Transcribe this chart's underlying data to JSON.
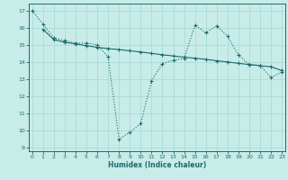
{
  "line1_x": [
    0,
    1,
    2,
    3,
    4,
    5,
    6,
    7,
    8,
    9,
    10,
    11,
    12,
    13,
    14,
    15,
    16,
    17,
    18,
    19,
    20,
    21,
    22,
    23
  ],
  "line1_y": [
    17.0,
    16.2,
    15.4,
    15.25,
    15.1,
    15.1,
    15.0,
    14.3,
    9.5,
    9.9,
    10.4,
    12.9,
    13.9,
    14.1,
    14.2,
    16.15,
    15.7,
    16.1,
    15.5,
    14.4,
    13.85,
    13.8,
    13.1,
    13.4
  ],
  "line2_x": [
    1,
    2,
    3,
    4,
    5,
    6,
    7,
    8,
    9,
    10,
    11,
    12,
    13,
    14,
    15,
    16,
    17,
    18,
    19,
    20,
    21,
    22,
    23
  ],
  "line2_y": [
    15.9,
    15.3,
    15.15,
    15.05,
    14.95,
    14.85,
    14.78,
    14.72,
    14.65,
    14.58,
    14.5,
    14.42,
    14.35,
    14.28,
    14.22,
    14.15,
    14.07,
    14.0,
    13.92,
    13.85,
    13.78,
    13.72,
    13.5
  ],
  "bg_color": "#c8ece8",
  "line_color": "#1a6b6b",
  "grid_color": "#b0ddd8",
  "xlabel": "Humidex (Indice chaleur)",
  "xlim": [
    -0.3,
    23.3
  ],
  "ylim": [
    8.8,
    17.4
  ],
  "yticks": [
    9,
    10,
    11,
    12,
    13,
    14,
    15,
    16,
    17
  ],
  "xticks": [
    0,
    1,
    2,
    3,
    4,
    5,
    6,
    7,
    8,
    9,
    10,
    11,
    12,
    13,
    14,
    15,
    16,
    17,
    18,
    19,
    20,
    21,
    22,
    23
  ]
}
